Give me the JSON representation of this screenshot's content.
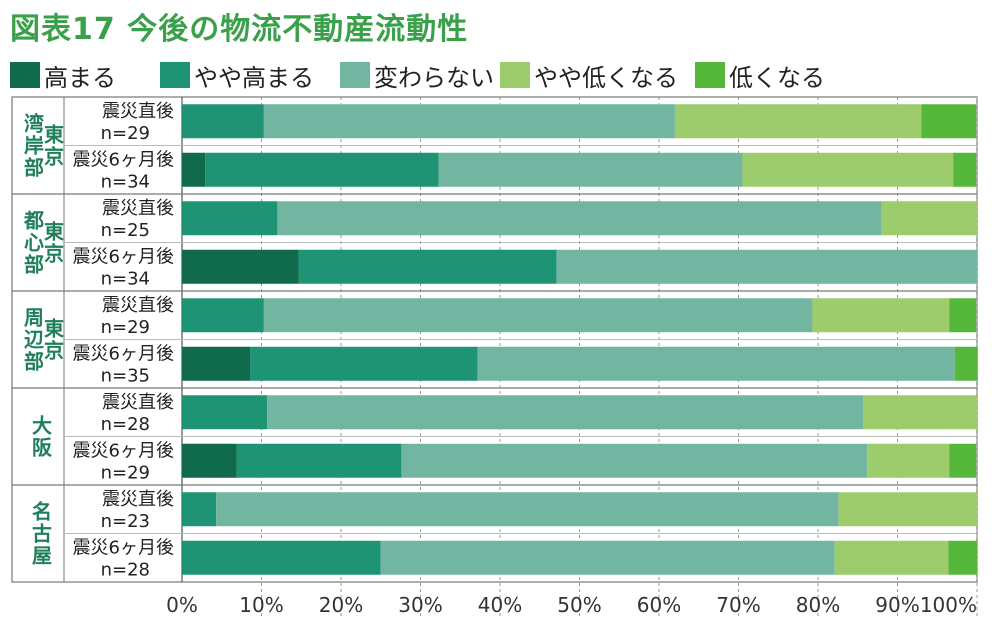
{
  "title": "図表17 今後の物流不動産流動性",
  "chart_data": {
    "type": "bar",
    "orientation": "horizontal",
    "stacked": true,
    "xlim": [
      0,
      100
    ],
    "x_ticks": [
      "0%",
      "10%",
      "20%",
      "30%",
      "40%",
      "50%",
      "60%",
      "70%",
      "80%",
      "90%",
      "100%"
    ],
    "legend_position": "top",
    "series": [
      {
        "name": "高まる",
        "color": "#0f6b4c"
      },
      {
        "name": "やや高まる",
        "color": "#1f9474"
      },
      {
        "name": "変わらない",
        "color": "#72b5a0"
      },
      {
        "name": "やや低くなる",
        "color": "#9ccc6c"
      },
      {
        "name": "低くなる",
        "color": "#56b83b"
      }
    ],
    "groups": [
      {
        "name": "東京湾岸部",
        "col1": "湾岸部",
        "col2": "東京",
        "rows": [
          {
            "label": "震災直後",
            "n": "n=29",
            "values": [
              0,
              10.3,
              51.7,
              31.0,
              6.9
            ]
          },
          {
            "label": "震災6ヶ月後",
            "n": "n=34",
            "values": [
              2.9,
              29.4,
              38.2,
              26.5,
              2.9
            ]
          }
        ]
      },
      {
        "name": "東京都心部",
        "col1": "都心部",
        "col2": "東京",
        "rows": [
          {
            "label": "震災直後",
            "n": "n=25",
            "values": [
              0,
              12.0,
              76.0,
              12.0,
              0
            ]
          },
          {
            "label": "震災6ヶ月後",
            "n": "n=34",
            "values": [
              14.7,
              32.4,
              52.9,
              0,
              0
            ]
          }
        ]
      },
      {
        "name": "東京周辺部",
        "col1": "周辺部",
        "col2": "東京",
        "rows": [
          {
            "label": "震災直後",
            "n": "n=29",
            "values": [
              0,
              10.3,
              69.0,
              17.2,
              3.4
            ]
          },
          {
            "label": "震災6ヶ月後",
            "n": "n=35",
            "values": [
              8.6,
              28.6,
              60.0,
              0,
              2.9
            ]
          }
        ]
      },
      {
        "name": "大阪",
        "col1": "大阪",
        "col2": "",
        "rows": [
          {
            "label": "震災直後",
            "n": "n=28",
            "values": [
              0,
              10.7,
              75.0,
              14.3,
              0
            ]
          },
          {
            "label": "震災6ヶ月後",
            "n": "n=29",
            "values": [
              6.9,
              20.7,
              58.6,
              10.3,
              3.4
            ]
          }
        ]
      },
      {
        "name": "名古屋",
        "col1": "名古屋",
        "col2": "",
        "rows": [
          {
            "label": "震災直後",
            "n": "n=23",
            "values": [
              0,
              4.3,
              78.3,
              17.4,
              0
            ]
          },
          {
            "label": "震災6ヶ月後",
            "n": "n=28",
            "values": [
              0,
              25.0,
              57.1,
              14.3,
              3.6
            ]
          }
        ]
      }
    ]
  }
}
